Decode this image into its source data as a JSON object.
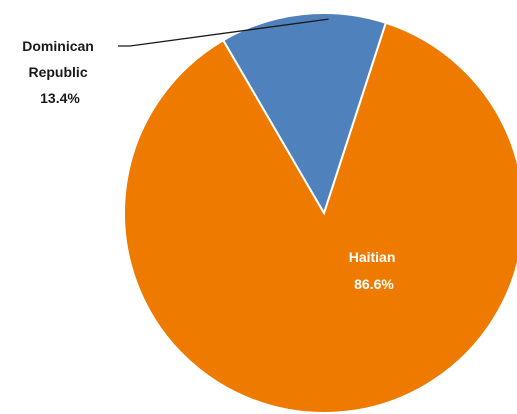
{
  "chart_data": {
    "type": "pie",
    "title": "",
    "slices": [
      {
        "label": "Haitian",
        "value": 86.6,
        "value_label": "86.6%",
        "color": "#ee7b00"
      },
      {
        "label": "Dominican Republic",
        "label_lines": [
          "Dominican",
          "Republic"
        ],
        "value": 13.4,
        "value_label": "13.4%",
        "color": "#4f81bd"
      }
    ],
    "legend": "none",
    "start_slice": "Dominican Republic",
    "label_placement": {
      "Haitian": "inside",
      "Dominican Republic": "outside-with-leader"
    }
  }
}
